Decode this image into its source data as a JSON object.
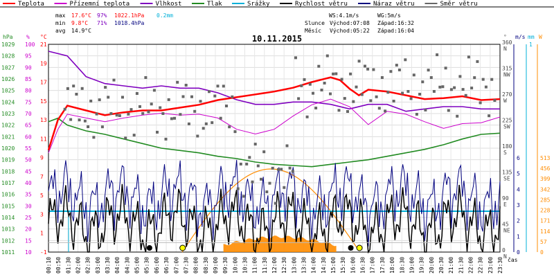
{
  "chart_data": {
    "type": "line",
    "title": "10.11.2015",
    "legend": [
      {
        "name": "Teplota",
        "color": "#ff0000"
      },
      {
        "name": "Přízemní teplota",
        "color": "#cc00cc"
      },
      {
        "name": "Vlhkost",
        "color": "#7f00bf"
      },
      {
        "name": "Tlak",
        "color": "#228b22"
      },
      {
        "name": "Srážky",
        "color": "#00b0d8"
      },
      {
        "name": "Rychlost větru",
        "color": "#000000"
      },
      {
        "name": "Náraz větru",
        "color": "#00007f"
      },
      {
        "name": "Směr větru",
        "color": "#666666"
      }
    ],
    "stats": {
      "max": {
        "label": "max",
        "temp": "17.6°C",
        "hum": "97%",
        "press": "1022.1hPa",
        "rain": "0.2mm"
      },
      "min": {
        "label": "min",
        "temp": "9.8°C",
        "hum": "71%",
        "press": "1018.4hPa"
      },
      "avg": {
        "label": "avg",
        "temp": "14.9°C"
      }
    },
    "wind_info": {
      "ws": "WS:4.1m/s",
      "wg": "WG:5m/s"
    },
    "sun": {
      "label": "Slunce",
      "rise": "Východ:07:08",
      "set": "Západ:16:32"
    },
    "moon": {
      "label": "Měsíc",
      "rise": "Východ:05:22",
      "set": "Západ:16:04"
    },
    "axes": {
      "left_hpa": {
        "unit": "hPa",
        "ticks": [
          "1029",
          "1028",
          "1027",
          "1026",
          "1025",
          "1024",
          "1023",
          "1022",
          "1021",
          "1020",
          "1019",
          "1018",
          "1017",
          "1016",
          "1015",
          "1014",
          "1013",
          "1012",
          "1011"
        ]
      },
      "left_pct": {
        "unit": "%",
        "ticks": [
          "100",
          "95",
          "90",
          "85",
          "80",
          "75",
          "70",
          "65",
          "60",
          "55",
          "50",
          "45",
          "40",
          "35",
          "30",
          "25",
          "20",
          "15",
          "10"
        ]
      },
      "left_c": {
        "unit": "°C",
        "ticks": [
          "21",
          "19",
          "17",
          "15",
          "13",
          "11",
          "9",
          "7",
          "5",
          "3",
          "1",
          "-1"
        ]
      },
      "right_dir": {
        "unit": "°",
        "ticks": [
          "360 N",
          "315 NW",
          "270 W",
          "225 SW",
          "180 S",
          "135 SE",
          "90 E",
          "45 NE",
          "0 N"
        ]
      },
      "right_ms": {
        "unit": "m/s",
        "ticks": [
          "6",
          "5",
          "4",
          "3",
          "2",
          "1",
          "0"
        ]
      },
      "right_mm": {
        "unit": "mm",
        "ticks": [
          "1"
        ]
      },
      "right_w": {
        "unit": "W",
        "ticks": [
          "513",
          "456",
          "399",
          "342",
          "285",
          "228",
          "171",
          "114",
          "57",
          "0"
        ]
      },
      "x_label": "čas",
      "x_ticks": [
        "00:10",
        "00:50",
        "01:30",
        "02:00",
        "02:30",
        "03:00",
        "03:30",
        "04:00",
        "04:30",
        "05:00",
        "05:30",
        "06:00",
        "06:30",
        "07:00",
        "07:30",
        "08:00",
        "08:30",
        "09:00",
        "09:30",
        "10:00",
        "10:30",
        "11:00",
        "11:30",
        "12:00",
        "12:30",
        "13:00",
        "13:30",
        "14:00",
        "14:30",
        "15:00",
        "15:30",
        "16:00",
        "16:30",
        "17:00",
        "17:30",
        "18:00",
        "18:30",
        "19:00",
        "19:30",
        "20:00",
        "20:30",
        "21:00",
        "21:30",
        "22:00",
        "22:30",
        "23:00",
        "23:30"
      ]
    },
    "series": [
      {
        "name": "Teplota",
        "unit": "°C",
        "x": [
          0,
          0.5,
          1,
          2,
          3,
          4,
          5,
          6,
          7,
          8,
          9,
          10,
          11,
          12,
          13,
          14,
          15,
          15.5,
          16,
          16.5,
          17,
          18,
          19,
          20,
          21,
          22,
          23,
          24
        ],
        "y": [
          9.8,
          13,
          14.5,
          14,
          13.5,
          13.8,
          14,
          14,
          14.3,
          14.6,
          15.1,
          15.4,
          15.7,
          16,
          16.4,
          17,
          17.5,
          17.2,
          16.3,
          15.6,
          16.2,
          16,
          15.6,
          15.2,
          15.3,
          15.5,
          15.1,
          15.2
        ]
      },
      {
        "name": "Vlhkost",
        "unit": "%",
        "x": [
          0,
          1,
          2,
          3,
          4,
          5,
          6,
          7,
          8,
          9,
          10,
          11,
          12,
          13,
          14,
          15,
          16,
          17,
          18,
          19,
          20,
          21,
          22,
          23,
          24
        ],
        "y": [
          97,
          95,
          86,
          83,
          82,
          81,
          82,
          81,
          81,
          79,
          76,
          74,
          74,
          75,
          75,
          74,
          72,
          74,
          74,
          71,
          72,
          73,
          73,
          72,
          72
        ]
      }
    ]
  }
}
